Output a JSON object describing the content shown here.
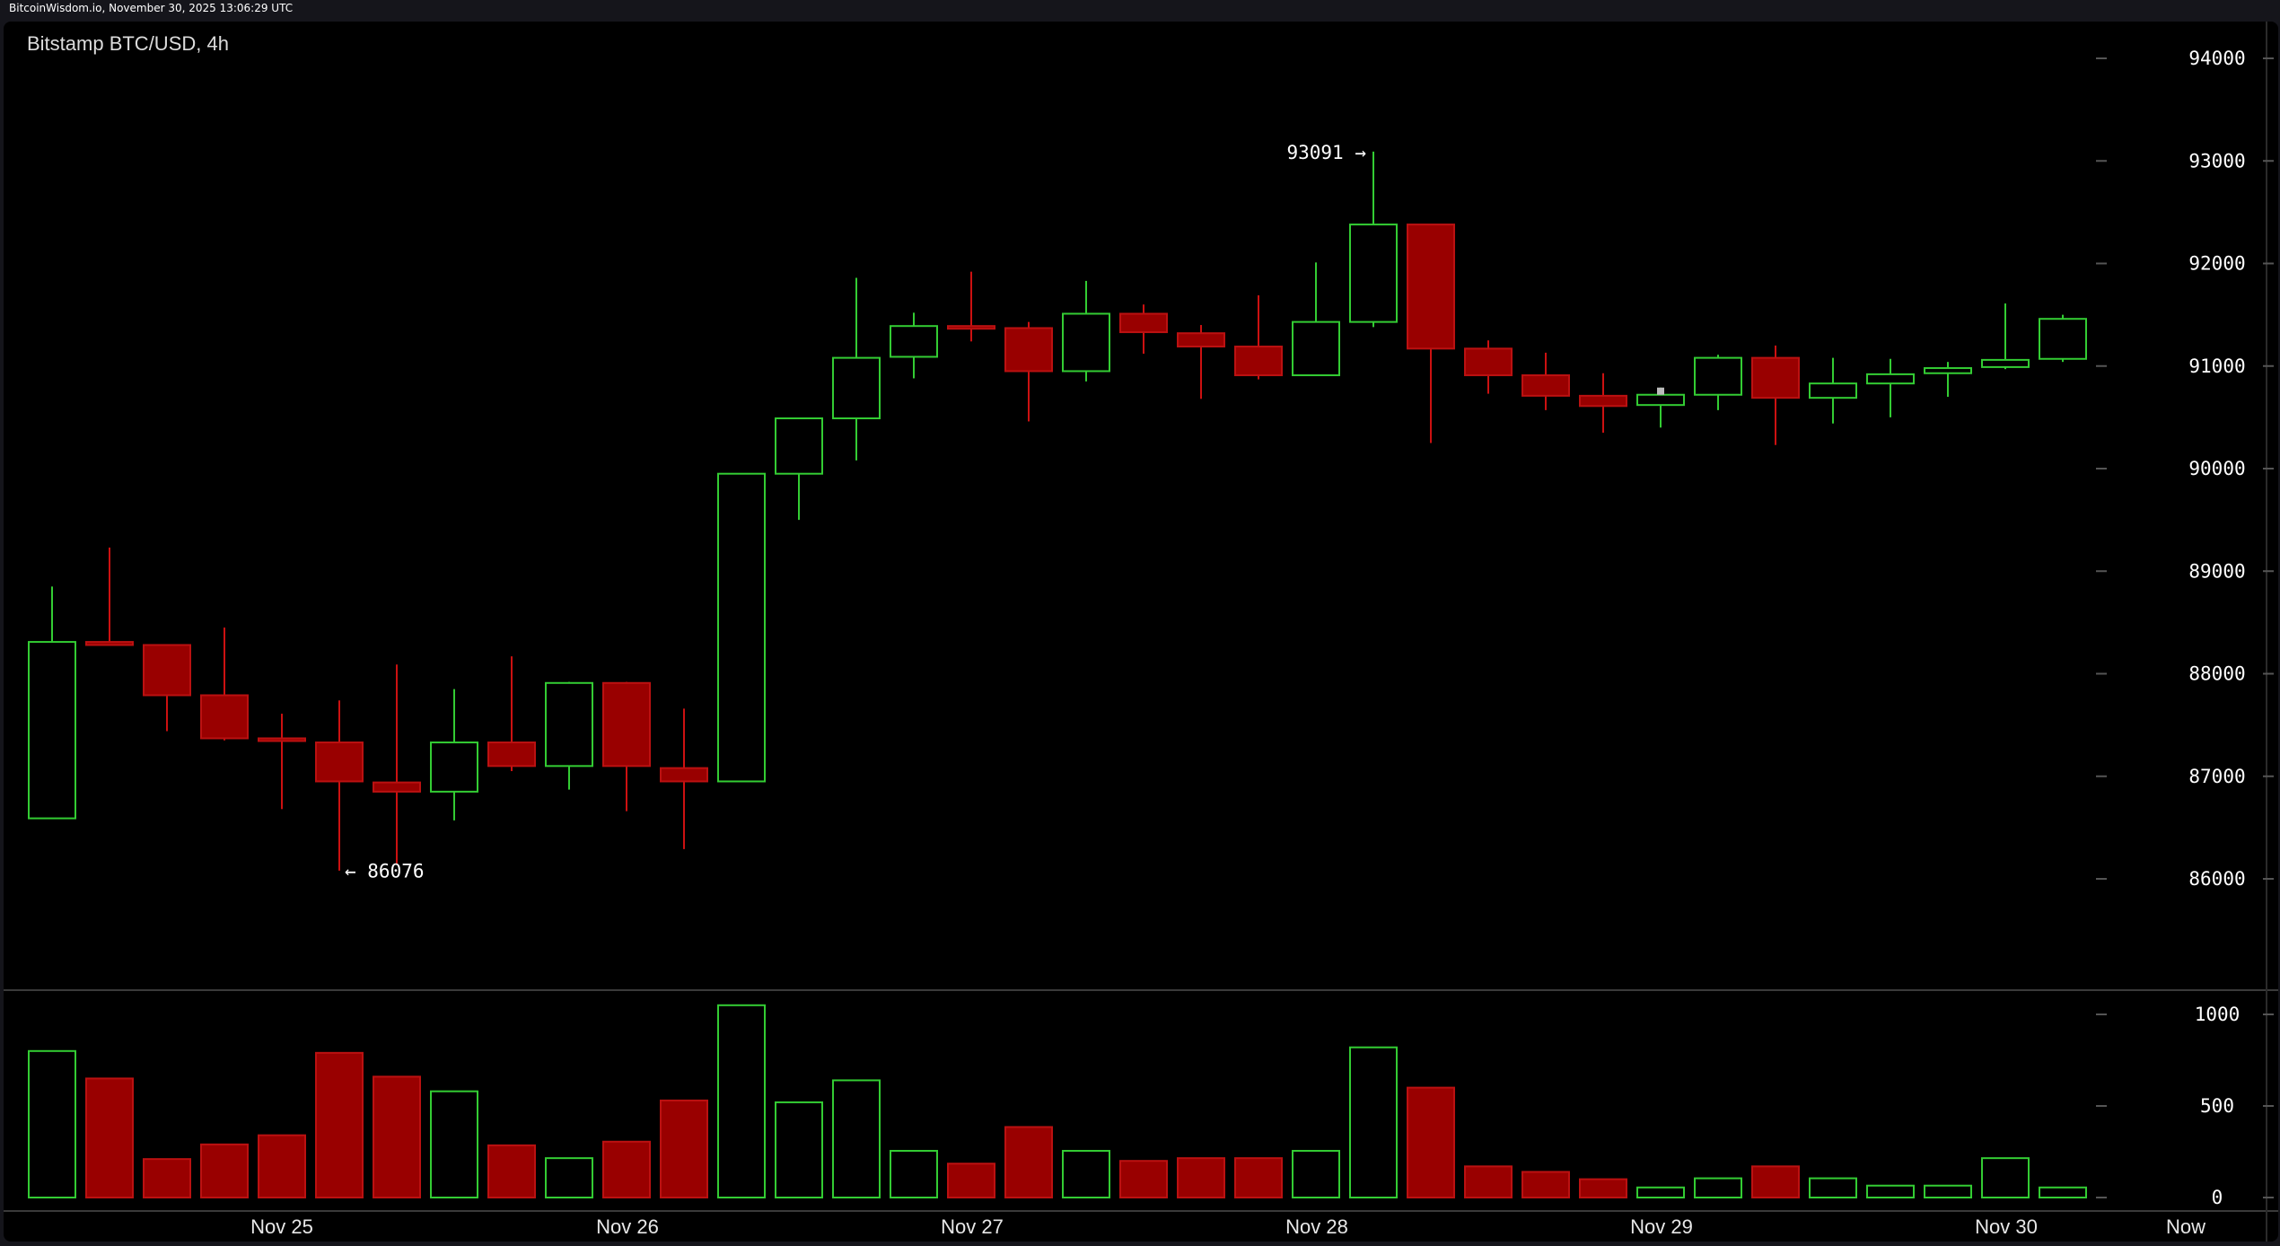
{
  "header": {
    "timestamp_text": "BitcoinWisdom.io, November 30, 2025 13:06:29 UTC"
  },
  "chart_data": {
    "type": "candlestick",
    "title": "Bitstamp BTC/USD, 4h",
    "ylim": [
      85000,
      94500
    ],
    "y_ticks": [
      86000,
      87000,
      88000,
      89000,
      90000,
      91000,
      92000,
      93000,
      94000
    ],
    "volume_ylim": [
      0,
      1100
    ],
    "volume_ticks": [
      0,
      500,
      1000
    ],
    "x_labels": [
      "Nov 25",
      "Nov 26",
      "Nov 27",
      "Nov 28",
      "Nov 29",
      "Nov 30",
      "Now"
    ],
    "annotations": {
      "high": 93091,
      "high_label": "93091 →",
      "low": 86076,
      "low_label": "← 86076"
    },
    "colors": {
      "up": "#33cc33",
      "down": "#990000",
      "down_border": "#bb1111",
      "wick_down": "#cc1111"
    },
    "candles": [
      {
        "o": 86590,
        "h": 88850,
        "l": 86590,
        "c": 88310,
        "v": 800
      },
      {
        "o": 88310,
        "h": 89230,
        "l": 88290,
        "c": 88280,
        "v": 650
      },
      {
        "o": 88280,
        "h": 88280,
        "l": 87440,
        "c": 87790,
        "v": 210
      },
      {
        "o": 87790,
        "h": 88450,
        "l": 87350,
        "c": 87370,
        "v": 290
      },
      {
        "o": 87370,
        "h": 87610,
        "l": 86680,
        "c": 87350,
        "v": 340
      },
      {
        "o": 87330,
        "h": 87740,
        "l": 86080,
        "c": 86950,
        "v": 790
      },
      {
        "o": 86940,
        "h": 88090,
        "l": 86150,
        "c": 86850,
        "v": 660
      },
      {
        "o": 86850,
        "h": 87850,
        "l": 86570,
        "c": 87330,
        "v": 580
      },
      {
        "o": 87330,
        "h": 88170,
        "l": 87050,
        "c": 87100,
        "v": 285
      },
      {
        "o": 87100,
        "h": 87920,
        "l": 86870,
        "c": 87910,
        "v": 215
      },
      {
        "o": 87910,
        "h": 87920,
        "l": 86660,
        "c": 87100,
        "v": 305
      },
      {
        "o": 87080,
        "h": 87660,
        "l": 86290,
        "c": 86950,
        "v": 530
      },
      {
        "o": 86950,
        "h": 89950,
        "l": 86950,
        "c": 89950,
        "v": 1050
      },
      {
        "o": 89950,
        "h": 90430,
        "l": 89500,
        "c": 90490,
        "v": 520
      },
      {
        "o": 90490,
        "h": 91860,
        "l": 90080,
        "c": 91080,
        "v": 640
      },
      {
        "o": 91090,
        "h": 91520,
        "l": 90880,
        "c": 91390,
        "v": 255
      },
      {
        "o": 91390,
        "h": 91920,
        "l": 91240,
        "c": 91380,
        "v": 185
      },
      {
        "o": 91370,
        "h": 91430,
        "l": 90460,
        "c": 90950,
        "v": 385
      },
      {
        "o": 90950,
        "h": 91830,
        "l": 90850,
        "c": 91510,
        "v": 255
      },
      {
        "o": 91510,
        "h": 91600,
        "l": 91120,
        "c": 91330,
        "v": 200
      },
      {
        "o": 91320,
        "h": 91400,
        "l": 90680,
        "c": 91190,
        "v": 215
      },
      {
        "o": 91190,
        "h": 91690,
        "l": 90870,
        "c": 90910,
        "v": 215
      },
      {
        "o": 90910,
        "h": 92010,
        "l": 90910,
        "c": 91430,
        "v": 255
      },
      {
        "o": 91430,
        "h": 93091,
        "l": 91380,
        "c": 92380,
        "v": 820
      },
      {
        "o": 92380,
        "h": 92380,
        "l": 90250,
        "c": 91170,
        "v": 600
      },
      {
        "o": 91170,
        "h": 91250,
        "l": 90730,
        "c": 90910,
        "v": 170
      },
      {
        "o": 90910,
        "h": 91130,
        "l": 90570,
        "c": 90710,
        "v": 140
      },
      {
        "o": 90710,
        "h": 90930,
        "l": 90350,
        "c": 90610,
        "v": 100
      },
      {
        "o": 90620,
        "h": 90790,
        "l": 90400,
        "c": 90720,
        "v": 55
      },
      {
        "o": 90720,
        "h": 91110,
        "l": 90570,
        "c": 91080,
        "v": 105
      },
      {
        "o": 91080,
        "h": 91200,
        "l": 90230,
        "c": 90690,
        "v": 170
      },
      {
        "o": 90690,
        "h": 91080,
        "l": 90440,
        "c": 90830,
        "v": 105
      },
      {
        "o": 90830,
        "h": 91070,
        "l": 90500,
        "c": 90920,
        "v": 65
      },
      {
        "o": 90930,
        "h": 91040,
        "l": 90700,
        "c": 90980,
        "v": 65
      },
      {
        "o": 90990,
        "h": 91610,
        "l": 90970,
        "c": 91060,
        "v": 215
      },
      {
        "o": 91070,
        "h": 91500,
        "l": 91040,
        "c": 91460,
        "v": 55
      }
    ]
  }
}
